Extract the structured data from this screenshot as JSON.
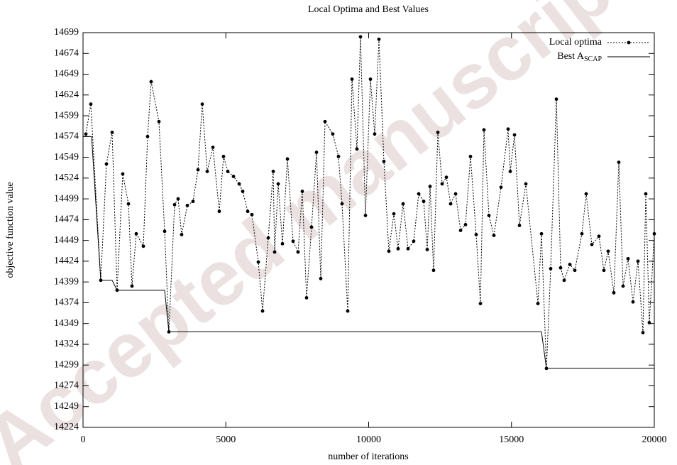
{
  "chart_data": {
    "type": "line",
    "title": "Local Optima and Best Values",
    "x_label": "number of iterations",
    "y_label": "objective function value",
    "watermark": "Accepted manuscript",
    "xlim": [
      0,
      20000
    ],
    "xticks": [
      0,
      5000,
      10000,
      15000,
      20000
    ],
    "ylim": [
      14224,
      14699
    ],
    "yticks": [
      14224,
      14249,
      14274,
      14299,
      14324,
      14349,
      14374,
      14399,
      14424,
      14449,
      14474,
      14499,
      14524,
      14549,
      14574,
      14599,
      14624,
      14649,
      14674,
      14699
    ],
    "legend_position": "top-right",
    "series": [
      {
        "name": "Local optima",
        "color": "#000000",
        "style": "dotted-markers",
        "x": [
          100,
          273,
          621,
          820,
          1019,
          1193,
          1391,
          1590,
          1714,
          1863,
          2112,
          2261,
          2385,
          2658,
          2857,
          3006,
          3205,
          3329,
          3453,
          3652,
          3851,
          4025,
          4174,
          4348,
          4547,
          4770,
          4919,
          5068,
          5267,
          5466,
          5590,
          5764,
          5913,
          6137,
          6286,
          6485,
          6659,
          6708,
          6833,
          6982,
          7156,
          7354,
          7528,
          7677,
          7826,
          8000,
          8174,
          8323,
          8472,
          8745,
          8944,
          9068,
          9267,
          9416,
          9590,
          9714,
          9888,
          10062,
          10211,
          10360,
          10534,
          10708,
          10882,
          11031,
          11205,
          11379,
          11578,
          11752,
          11926,
          12050,
          12150,
          12273,
          12423,
          12572,
          12721,
          12870,
          13044,
          13218,
          13391,
          13565,
          13764,
          13913,
          14037,
          14211,
          14385,
          14634,
          14882,
          14957,
          15106,
          15280,
          15503,
          15926,
          16050,
          16224,
          16373,
          16572,
          16721,
          16845,
          17044,
          17218,
          17466,
          17615,
          17814,
          18062,
          18236,
          18385,
          18584,
          18758,
          18907,
          19081,
          19255,
          19429,
          19603,
          19702,
          19826,
          20000
        ],
        "values": [
          14577,
          14613,
          14401,
          14541,
          14579,
          14389,
          14529,
          14493,
          14394,
          14457,
          14442,
          14574,
          14640,
          14592,
          14460,
          14339,
          14492,
          14499,
          14456,
          14491,
          14496,
          14534,
          14613,
          14532,
          14561,
          14484,
          14550,
          14532,
          14526,
          14517,
          14508,
          14484,
          14480,
          14423,
          14364,
          14452,
          14532,
          14435,
          14517,
          14445,
          14547,
          14448,
          14435,
          14508,
          14380,
          14465,
          14555,
          14403,
          14592,
          14577,
          14550,
          14493,
          14364,
          14643,
          14559,
          14694,
          14479,
          14643,
          14577,
          14691,
          14544,
          14436,
          14481,
          14439,
          14493,
          14439,
          14448,
          14505,
          14496,
          14438,
          14514,
          14413,
          14579,
          14517,
          14525,
          14493,
          14505,
          14461,
          14468,
          14550,
          14456,
          14373,
          14582,
          14479,
          14455,
          14513,
          14583,
          14532,
          14576,
          14467,
          14517,
          14373,
          14457,
          14295,
          14415,
          14619,
          14416,
          14401,
          14420,
          14413,
          14457,
          14505,
          14444,
          14454,
          14413,
          14436,
          14386,
          14543,
          14394,
          14427,
          14375,
          14424,
          14338,
          14505,
          14350,
          14457
        ]
      },
      {
        "name": "Best A",
        "name_subscript": "SCAP",
        "color": "#000000",
        "style": "solid",
        "x": [
          0,
          300,
          621,
          1019,
          1193,
          2857,
          3006,
          16050,
          16224,
          20000
        ],
        "values": [
          14574,
          14574,
          14401,
          14401,
          14389,
          14389,
          14339,
          14339,
          14295,
          14295
        ]
      }
    ]
  }
}
